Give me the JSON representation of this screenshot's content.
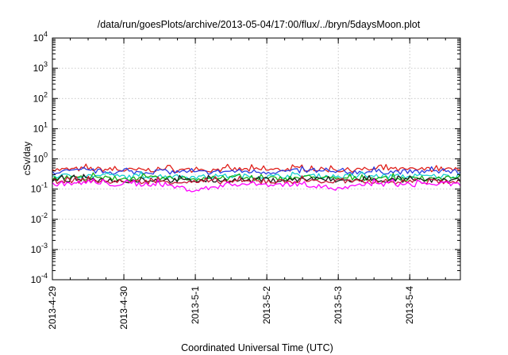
{
  "chart_data": {
    "type": "line",
    "title": "/data/run/goesPlots/archive/2013-05-04/17:00/flux/../bryn/5daysMoon.plot",
    "xlabel": "Coordinated Universal Time (UTC)",
    "ylabel": "cSv/day",
    "yscale": "log",
    "ylim": [
      0.0001,
      10000
    ],
    "xlim": [
      "2013-04-29T00:00",
      "2013-05-04T17:00"
    ],
    "grid": true,
    "legend": "none",
    "x_ticks": [
      "2013-4-29",
      "2013-4-30",
      "2013-5-1",
      "2013-5-2",
      "2013-5-3",
      "2013-5-4"
    ],
    "x_tick_dates": [
      "2013-04-29T00:00",
      "2013-04-30T00:00",
      "2013-05-01T00:00",
      "2013-05-02T00:00",
      "2013-05-03T00:00",
      "2013-05-04T00:00"
    ],
    "y_ticks": [
      {
        "base": "10",
        "exp": "4",
        "value": 10000
      },
      {
        "base": "10",
        "exp": "3",
        "value": 1000
      },
      {
        "base": "10",
        "exp": "2",
        "value": 100
      },
      {
        "base": "10",
        "exp": "1",
        "value": 10
      },
      {
        "base": "10",
        "exp": "0",
        "value": 1
      },
      {
        "base": "10",
        "exp": "-1",
        "value": 0.1
      },
      {
        "base": "10",
        "exp": "-2",
        "value": 0.01
      },
      {
        "base": "10",
        "exp": "-3",
        "value": 0.001
      },
      {
        "base": "10",
        "exp": "-4",
        "value": 0.0001
      }
    ],
    "x": [
      "2013-04-29T00:00",
      "2013-04-29T12:00",
      "2013-04-30T00:00",
      "2013-04-30T12:00",
      "2013-05-01T00:00",
      "2013-05-01T12:00",
      "2013-05-02T00:00",
      "2013-05-02T12:00",
      "2013-05-03T00:00",
      "2013-05-03T12:00",
      "2013-05-04T00:00",
      "2013-05-04T12:00",
      "2013-05-04T17:00"
    ],
    "series": [
      {
        "color": "#e0201b",
        "values": [
          0.43,
          0.47,
          0.42,
          0.44,
          0.41,
          0.45,
          0.43,
          0.47,
          0.42,
          0.45,
          0.44,
          0.46,
          0.42
        ]
      },
      {
        "color": "#2a3be0",
        "values": [
          0.37,
          0.4,
          0.36,
          0.38,
          0.35,
          0.39,
          0.37,
          0.4,
          0.36,
          0.38,
          0.37,
          0.39,
          0.36
        ]
      },
      {
        "color": "#15d0d0",
        "values": [
          0.27,
          0.28,
          0.26,
          0.27,
          0.25,
          0.27,
          0.26,
          0.28,
          0.26,
          0.27,
          0.26,
          0.27,
          0.26
        ]
      },
      {
        "color": "#18b018",
        "values": [
          0.23,
          0.24,
          0.22,
          0.23,
          0.22,
          0.23,
          0.22,
          0.24,
          0.22,
          0.23,
          0.22,
          0.23,
          0.22
        ]
      },
      {
        "color": "#1a1a1a",
        "values": [
          0.2,
          0.21,
          0.19,
          0.2,
          0.19,
          0.2,
          0.19,
          0.21,
          0.19,
          0.2,
          0.19,
          0.2,
          0.19
        ]
      },
      {
        "color": "#c41a38",
        "values": [
          0.18,
          0.19,
          0.17,
          0.18,
          0.17,
          0.18,
          0.17,
          0.19,
          0.17,
          0.18,
          0.17,
          0.18,
          0.17
        ]
      },
      {
        "color": "#ff00ff",
        "values": [
          0.15,
          0.16,
          0.14,
          0.15,
          0.09,
          0.15,
          0.14,
          0.15,
          0.1,
          0.15,
          0.14,
          0.15,
          0.14
        ]
      }
    ]
  }
}
